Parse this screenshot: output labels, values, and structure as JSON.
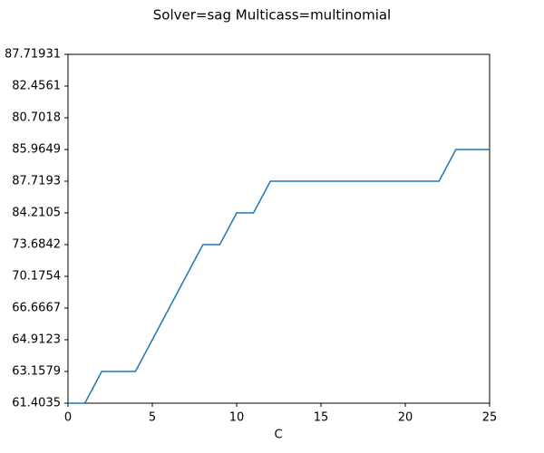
{
  "chart_data": {
    "type": "line",
    "title": "Solver=sag Multicass=multinomial",
    "xlabel": "C",
    "x": [
      0,
      1,
      2,
      3,
      4,
      5,
      6,
      7,
      8,
      9,
      10,
      11,
      12,
      13,
      14,
      15,
      16,
      17,
      18,
      19,
      20,
      21,
      22,
      23,
      24,
      25
    ],
    "series": [
      {
        "name": null,
        "color": "#1f77b4",
        "values": [
          0,
          0,
          1,
          1,
          1,
          2,
          3,
          4,
          5,
          5,
          6,
          6,
          7,
          7,
          7,
          7,
          7,
          7,
          7,
          7,
          7,
          7,
          7,
          8,
          8,
          8
        ]
      }
    ],
    "xlim": [
      0,
      25
    ],
    "xticks": [
      0,
      5,
      10,
      15,
      20,
      25
    ],
    "ylim": [
      0,
      11
    ],
    "yticks": [
      {
        "value": 0,
        "label": "61.4035"
      },
      {
        "value": 1,
        "label": "63.1579"
      },
      {
        "value": 2,
        "label": "64.9123"
      },
      {
        "value": 3,
        "label": "66.6667"
      },
      {
        "value": 4,
        "label": "70.1754"
      },
      {
        "value": 5,
        "label": "73.6842"
      },
      {
        "value": 6,
        "label": "84.2105"
      },
      {
        "value": 7,
        "label": "87.7193"
      },
      {
        "value": 8,
        "label": "85.9649"
      },
      {
        "value": 9,
        "label": "80.7018"
      },
      {
        "value": 10,
        "label": "82.4561"
      },
      {
        "value": 11,
        "label": "87.71931"
      }
    ]
  }
}
